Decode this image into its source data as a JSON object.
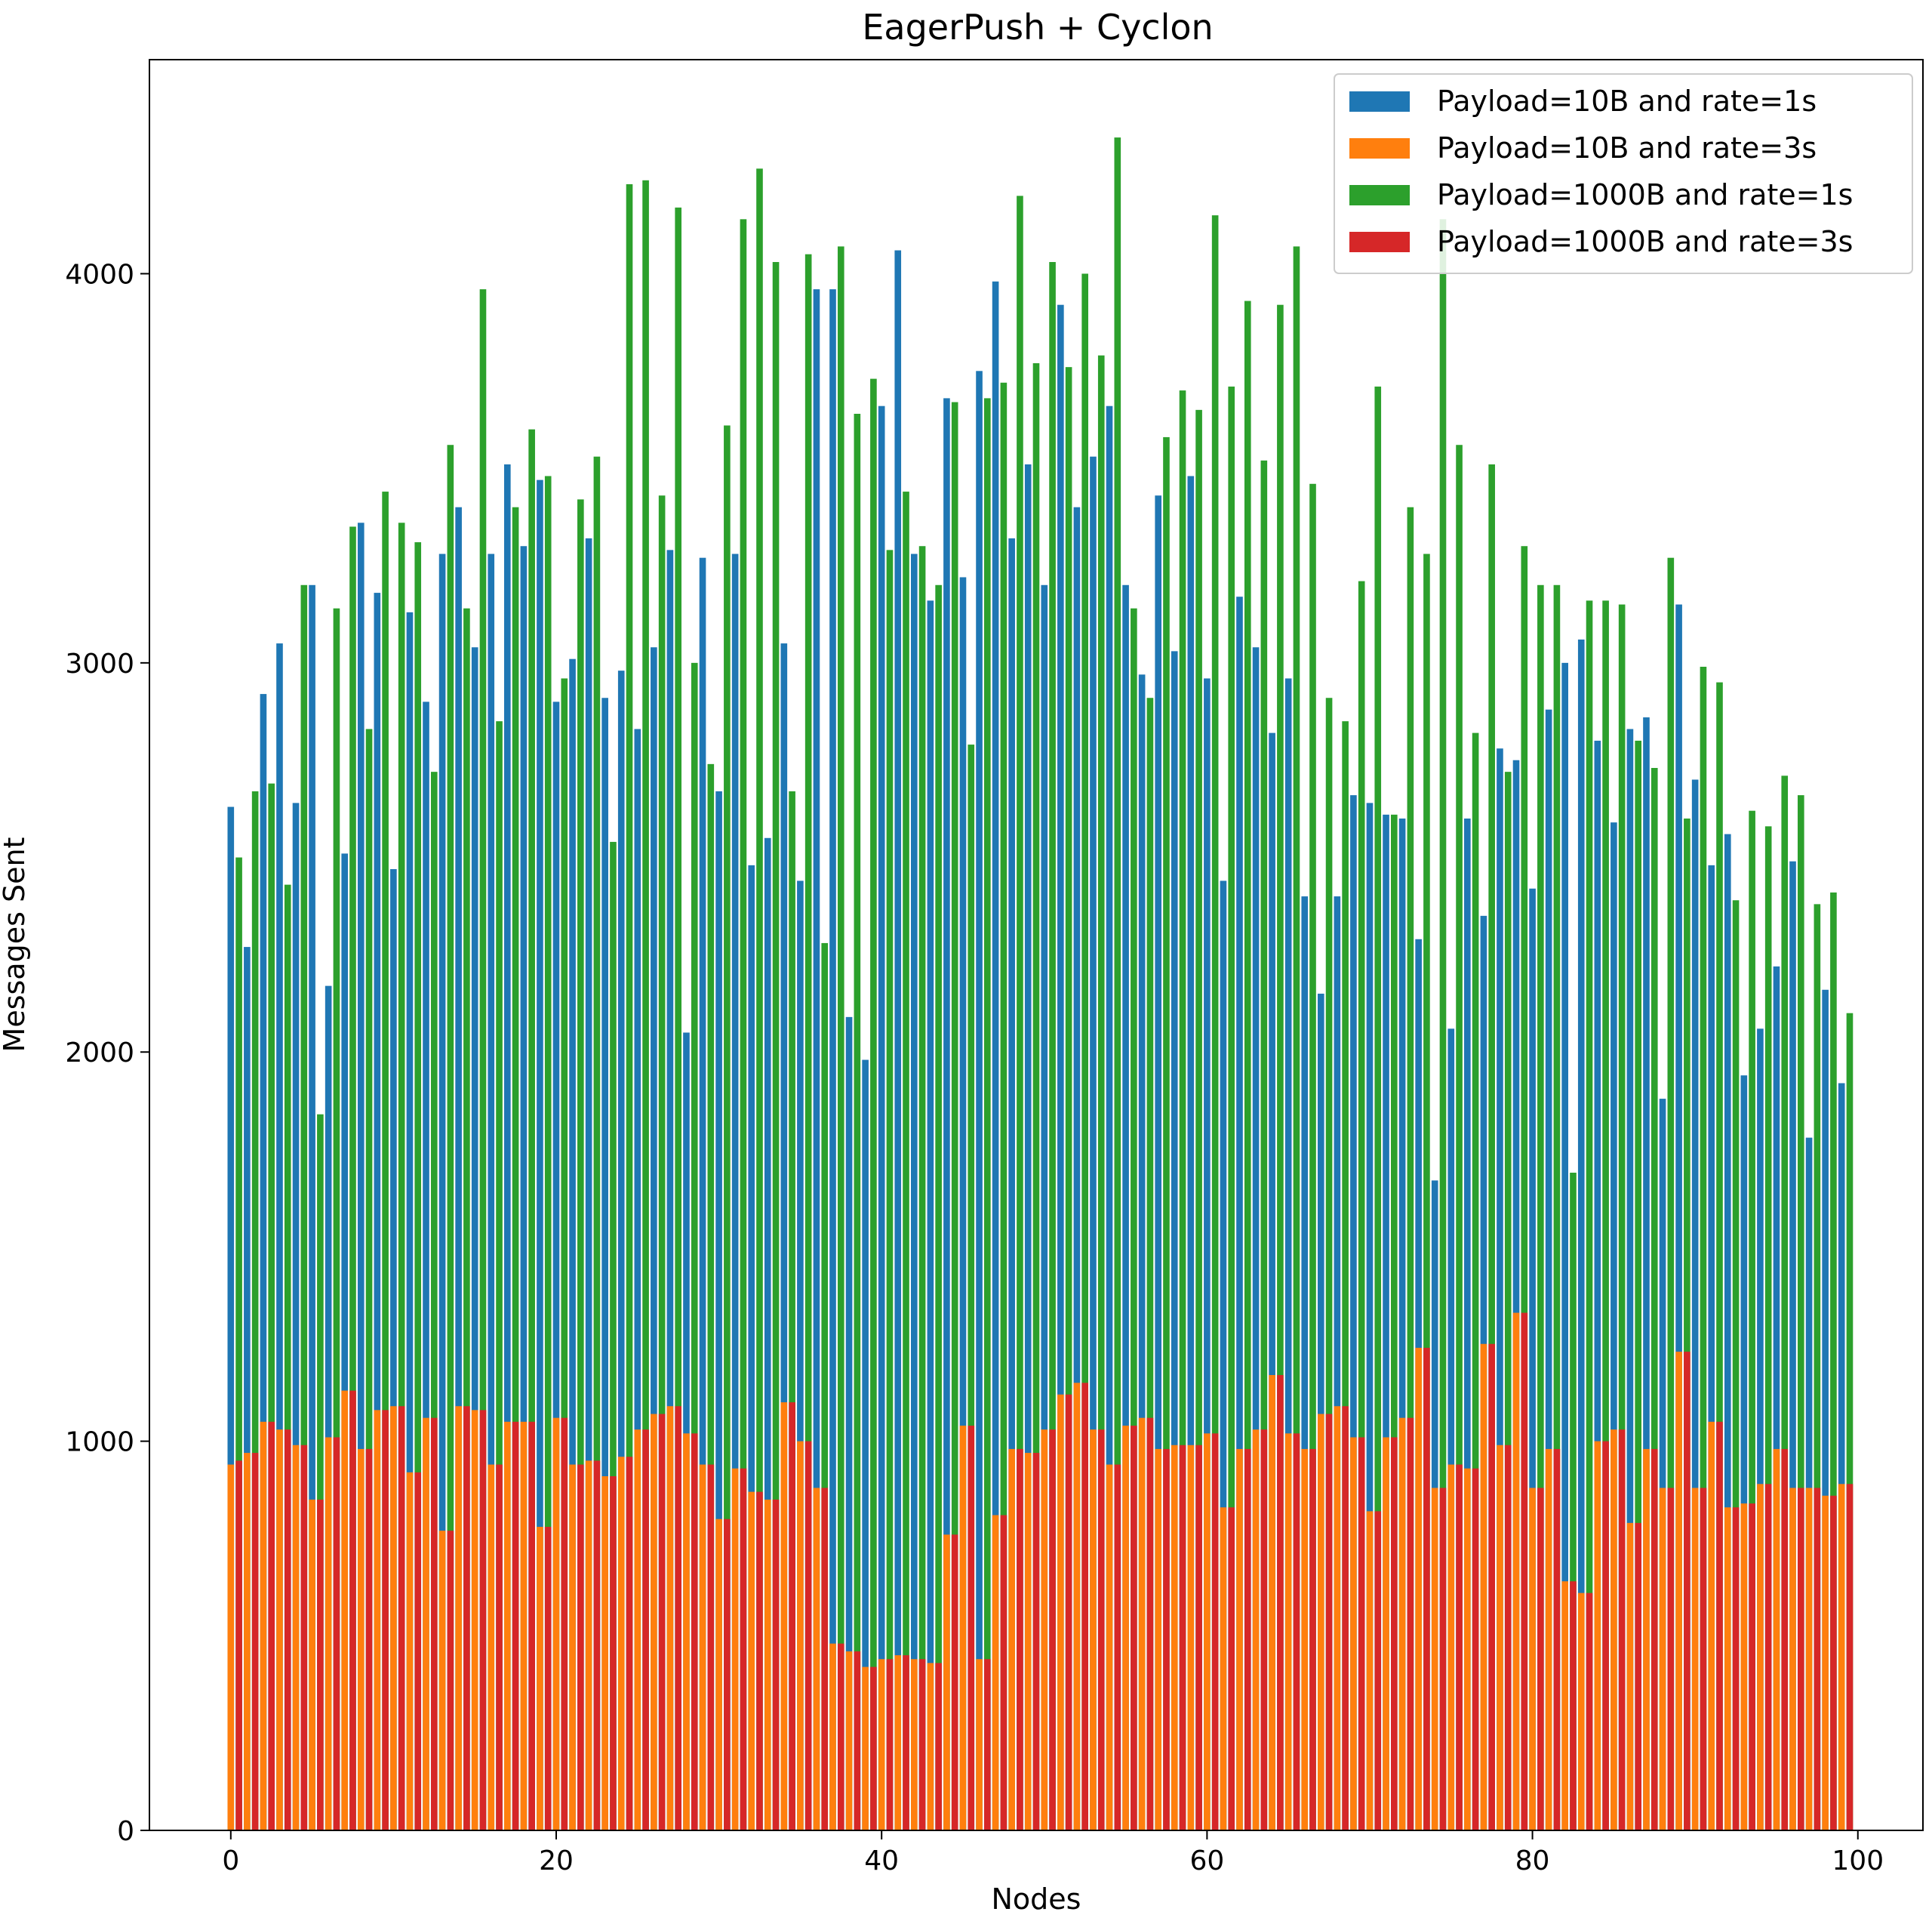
{
  "chart_data": {
    "type": "bar",
    "title": "EagerPush + Cyclon",
    "xlabel": "Nodes",
    "ylabel": "Messages Sent",
    "xlim": [
      -5,
      104
    ],
    "ylim": [
      0,
      4550
    ],
    "xticks": [
      0,
      20,
      40,
      60,
      80,
      100
    ],
    "yticks": [
      0,
      1000,
      2000,
      3000,
      4000
    ],
    "grid": false,
    "legend_position": "top-right",
    "x": [
      0,
      1,
      2,
      3,
      4,
      5,
      6,
      7,
      8,
      9,
      10,
      11,
      12,
      13,
      14,
      15,
      16,
      17,
      18,
      19,
      20,
      21,
      22,
      23,
      24,
      25,
      26,
      27,
      28,
      29,
      30,
      31,
      32,
      33,
      34,
      35,
      36,
      37,
      38,
      39,
      40,
      41,
      42,
      43,
      44,
      45,
      46,
      47,
      48,
      49,
      50,
      51,
      52,
      53,
      54,
      55,
      56,
      57,
      58,
      59,
      60,
      61,
      62,
      63,
      64,
      65,
      66,
      67,
      68,
      69,
      70,
      71,
      72,
      73,
      74,
      75,
      76,
      77,
      78,
      79,
      80,
      81,
      82,
      83,
      84,
      85,
      86,
      87,
      88,
      89,
      90,
      91,
      92,
      93,
      94,
      95,
      96,
      97,
      98,
      99
    ],
    "series": [
      {
        "name": "Payload=10B and rate=1s",
        "color": "#1f77b4",
        "offset": 0,
        "values": [
          2630,
          2270,
          2920,
          3050,
          2640,
          3200,
          2170,
          2510,
          3360,
          3180,
          2470,
          3130,
          2900,
          3280,
          3400,
          3040,
          3280,
          3510,
          3300,
          3470,
          2900,
          3010,
          3320,
          2910,
          2980,
          2830,
          3040,
          3290,
          2050,
          3270,
          2670,
          3280,
          2480,
          2550,
          3050,
          2440,
          3960,
          3960,
          2090,
          1980,
          3660,
          4060,
          3280,
          3160,
          3680,
          3220,
          3750,
          3980,
          3320,
          3510,
          3200,
          3920,
          3400,
          3530,
          3660,
          3200,
          2970,
          3430,
          3030,
          3480,
          2960,
          2440,
          3170,
          3040,
          2820,
          2960,
          2400,
          2150,
          2400,
          2660,
          2640,
          2610,
          2600,
          2290,
          1670,
          2060,
          2600,
          2350,
          2780,
          2750,
          2420,
          2880,
          3000,
          3060,
          2800,
          2590,
          2830,
          2860,
          1880,
          3150,
          2700,
          2480,
          2560,
          1940,
          2060,
          2220,
          2490,
          1780,
          2160,
          1920
        ]
      },
      {
        "name": "Payload=10B and rate=3s",
        "color": "#ff7f0e",
        "offset": 0,
        "values": [
          940,
          970,
          1050,
          1030,
          990,
          850,
          1010,
          1130,
          980,
          1080,
          1090,
          920,
          1060,
          770,
          1090,
          1080,
          940,
          1050,
          1050,
          780,
          1060,
          940,
          950,
          910,
          960,
          1030,
          1070,
          1090,
          1020,
          940,
          800,
          930,
          870,
          850,
          1100,
          1000,
          880,
          480,
          460,
          420,
          440,
          450,
          440,
          430,
          760,
          1040,
          440,
          810,
          980,
          970,
          1030,
          1120,
          1150,
          1030,
          940,
          1040,
          1060,
          980,
          990,
          990,
          1020,
          830,
          980,
          1030,
          1170,
          1020,
          980,
          1070,
          1090,
          1010,
          820,
          1010,
          1060,
          1240,
          880,
          940,
          930,
          1250,
          990,
          1330,
          880,
          980,
          640,
          610,
          1000,
          1030,
          790,
          980,
          880,
          1230,
          880,
          1050,
          830,
          840,
          890,
          980,
          880,
          880,
          860,
          890
        ]
      },
      {
        "name": "Payload=1000B and rate=1s",
        "color": "#2ca02c",
        "offset": 0.5,
        "values": [
          2500,
          2670,
          2690,
          2430,
          3200,
          1840,
          3140,
          3350,
          2830,
          3440,
          3360,
          3310,
          2720,
          3560,
          3140,
          3960,
          2850,
          3400,
          3600,
          3480,
          2960,
          3420,
          3530,
          2540,
          4230,
          4240,
          3430,
          4170,
          3000,
          2740,
          3610,
          4140,
          4270,
          4030,
          2670,
          4050,
          2280,
          4070,
          3640,
          3730,
          3290,
          3440,
          3300,
          3200,
          3670,
          2790,
          3680,
          3720,
          4200,
          3770,
          4030,
          3760,
          4000,
          3790,
          4350,
          3140,
          2910,
          3580,
          3700,
          3650,
          4150,
          3710,
          3930,
          3520,
          3920,
          4070,
          3460,
          2910,
          2850,
          3210,
          3710,
          2610,
          3400,
          3280,
          4140,
          3560,
          2820,
          3510,
          2720,
          3300,
          3200,
          3200,
          1690,
          3160,
          3160,
          3150,
          2800,
          2730,
          3270,
          2600,
          2990,
          2950,
          2390,
          2620,
          2580,
          2710,
          2660,
          2380,
          2410,
          2100
        ]
      },
      {
        "name": "Payload=1000B and rate=3s",
        "color": "#d62728",
        "offset": 0.5,
        "values": [
          950,
          970,
          1050,
          1030,
          990,
          850,
          1010,
          1130,
          980,
          1080,
          1090,
          920,
          1060,
          770,
          1090,
          1080,
          940,
          1050,
          1050,
          780,
          1060,
          940,
          950,
          910,
          960,
          1030,
          1070,
          1090,
          1020,
          940,
          800,
          930,
          870,
          850,
          1100,
          1000,
          880,
          480,
          460,
          420,
          440,
          450,
          440,
          430,
          760,
          1040,
          440,
          810,
          980,
          970,
          1030,
          1120,
          1150,
          1030,
          940,
          1040,
          1060,
          980,
          990,
          990,
          1020,
          830,
          980,
          1030,
          1170,
          1020,
          980,
          1070,
          1090,
          1010,
          820,
          1010,
          1060,
          1240,
          880,
          940,
          930,
          1250,
          990,
          1330,
          880,
          980,
          640,
          610,
          1000,
          1030,
          790,
          980,
          880,
          1230,
          880,
          1050,
          830,
          840,
          890,
          980,
          880,
          880,
          860,
          890
        ]
      }
    ]
  }
}
